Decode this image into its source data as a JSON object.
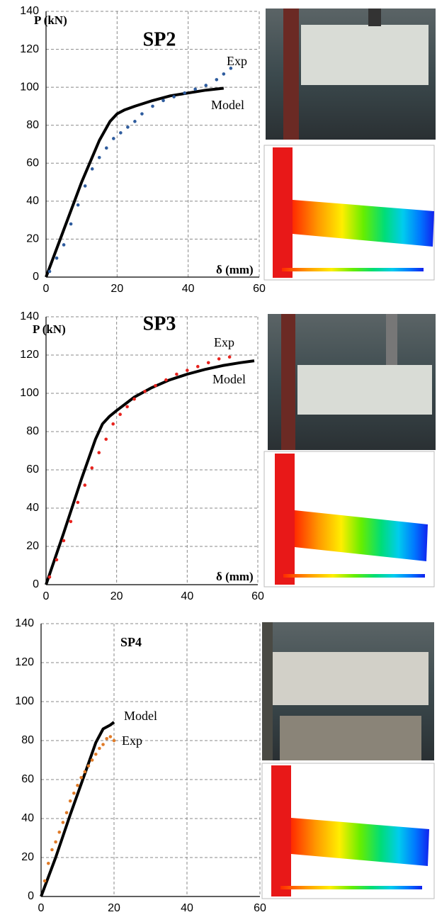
{
  "chart_data": [
    {
      "type": "line",
      "title": "SP2",
      "ylabel": "P (kN)",
      "xlabel": "δ (mm)",
      "xlim": [
        0,
        60
      ],
      "ylim": [
        0,
        140
      ],
      "xticks": [
        0,
        20,
        40,
        60
      ],
      "yticks": [
        0,
        20,
        40,
        60,
        80,
        100,
        120,
        140
      ],
      "grid": true,
      "series": [
        {
          "name": "Model",
          "color": "#000000",
          "style": "line",
          "x": [
            0,
            5,
            10,
            15,
            18,
            20,
            22,
            25,
            30,
            35,
            40,
            45,
            50
          ],
          "values": [
            0,
            25,
            50,
            72,
            82,
            86,
            88,
            90,
            93,
            95.5,
            97,
            98.5,
            99.5
          ]
        },
        {
          "name": "Exp",
          "color": "#2e5c9e",
          "style": "dots",
          "x": [
            1,
            3,
            5,
            7,
            9,
            11,
            13,
            15,
            17,
            19,
            21,
            23,
            25,
            27,
            30,
            33,
            36,
            39,
            42,
            45,
            48,
            50,
            52
          ],
          "values": [
            3,
            10,
            17,
            28,
            38,
            48,
            57,
            63,
            68,
            73,
            76,
            79,
            82,
            86,
            90,
            93,
            95,
            97,
            99,
            101,
            104,
            107,
            110
          ]
        }
      ]
    },
    {
      "type": "line",
      "title": "SP3",
      "ylabel": "P (kN)",
      "xlabel": "δ (mm)",
      "xlim": [
        0,
        60
      ],
      "ylim": [
        0,
        140
      ],
      "xticks": [
        0,
        20,
        40,
        60
      ],
      "yticks": [
        0,
        20,
        40,
        60,
        80,
        100,
        120,
        140
      ],
      "grid": true,
      "series": [
        {
          "name": "Model",
          "color": "#000000",
          "style": "line",
          "x": [
            0,
            5,
            10,
            14,
            16,
            18,
            20,
            25,
            30,
            35,
            40,
            45,
            50,
            55,
            59
          ],
          "values": [
            0,
            27,
            55,
            76,
            84,
            88,
            91,
            98,
            103,
            107,
            110,
            112.5,
            114.5,
            116,
            117
          ]
        },
        {
          "name": "Exp",
          "color": "#e8231e",
          "style": "dots",
          "x": [
            1,
            3,
            5,
            7,
            9,
            11,
            13,
            15,
            17,
            19,
            21,
            23,
            25,
            28,
            31,
            34,
            37,
            40,
            43,
            46,
            49,
            52
          ],
          "values": [
            4,
            13,
            23,
            33,
            43,
            52,
            61,
            69,
            76,
            84,
            89,
            93,
            97,
            101,
            104,
            107,
            110,
            112,
            114,
            116,
            118,
            119
          ]
        }
      ]
    },
    {
      "type": "line",
      "title": "SP4",
      "xlim": [
        0,
        60
      ],
      "ylim": [
        0,
        140
      ],
      "xticks": [
        0,
        20,
        40,
        60
      ],
      "yticks": [
        0,
        20,
        40,
        60,
        80,
        100,
        120,
        140
      ],
      "grid": true,
      "series": [
        {
          "name": "Model",
          "color": "#000000",
          "style": "line",
          "x": [
            0,
            4,
            8,
            12,
            15,
            17,
            19,
            20
          ],
          "values": [
            0,
            20,
            42,
            63,
            79,
            86,
            88,
            89.5
          ]
        },
        {
          "name": "Exp",
          "color": "#e07b28",
          "style": "dots",
          "x": [
            1,
            2,
            3,
            4,
            5,
            6,
            7,
            8,
            9,
            10,
            11,
            12,
            13,
            14,
            15,
            16,
            17,
            18,
            19,
            20
          ],
          "values": [
            8,
            17,
            24,
            28,
            33,
            38,
            43,
            49,
            53,
            57,
            61,
            64,
            67,
            70,
            73,
            76,
            78,
            81,
            82,
            80
          ]
        }
      ]
    }
  ]
}
